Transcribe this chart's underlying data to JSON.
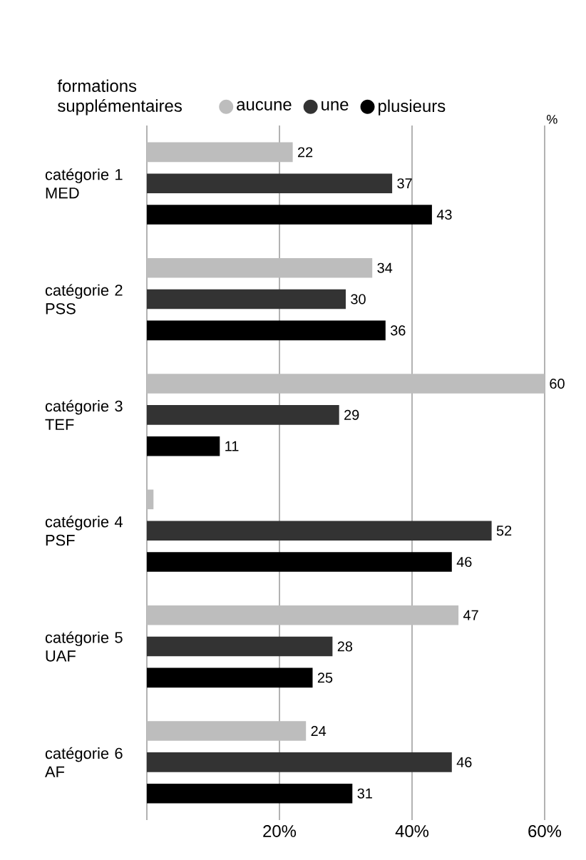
{
  "chart_data": {
    "type": "bar",
    "orientation": "horizontal",
    "legend_title": "formations supplémentaires",
    "categories": [
      "catégorie 1 MED",
      "catégorie 2 PSS",
      "catégorie 3 TEF",
      "catégorie 4 PSF",
      "catégorie 5 UAF",
      "catégorie 6 AF"
    ],
    "series": [
      {
        "name": "aucune",
        "color": "#bdbdbd",
        "values": [
          22,
          34,
          60,
          1,
          47,
          24
        ],
        "value_labels": [
          "22",
          "34",
          "60",
          null,
          "47",
          "24"
        ]
      },
      {
        "name": "une",
        "color": "#333333",
        "values": [
          37,
          30,
          29,
          52,
          28,
          46
        ],
        "value_labels": [
          "37",
          "30",
          "29",
          "52",
          "28",
          "46"
        ]
      },
      {
        "name": "plusieurs",
        "color": "#000000",
        "values": [
          43,
          36,
          11,
          46,
          25,
          31
        ],
        "value_labels": [
          "43",
          "36",
          "11",
          "46",
          "25",
          "31"
        ]
      }
    ],
    "xlim": [
      0,
      60
    ],
    "xticks": [
      {
        "value": 0,
        "label": null
      },
      {
        "value": 20,
        "label": "20%"
      },
      {
        "value": 40,
        "label": "40%"
      },
      {
        "value": 60,
        "label": "60%"
      }
    ],
    "grid": "x",
    "legend": "top",
    "annotations": [
      "%"
    ]
  }
}
